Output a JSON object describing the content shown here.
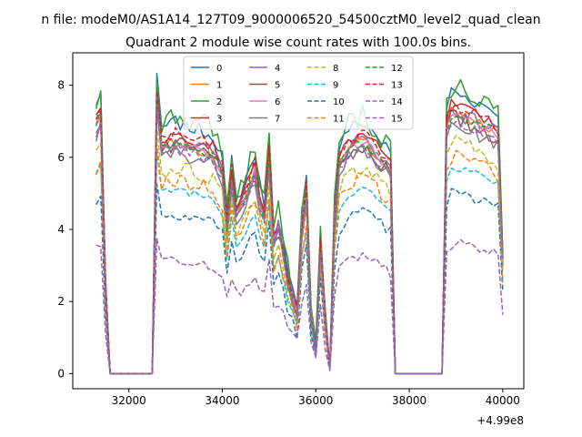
{
  "chart_data": {
    "type": "line",
    "suptitle": "n file: modeM0/AS1A14_127T09_9000006520_54500cztM0_level2_quad_clean",
    "title": "Quadrant 2 module wise count rates with 100.0s bins.",
    "xlabel": "",
    "ylabel": "",
    "x_offset_label": "+4.99e8",
    "xlim": [
      30800,
      40450
    ],
    "ylim": [
      -0.42,
      8.9
    ],
    "xticks": [
      32000,
      34000,
      36000,
      38000,
      40000
    ],
    "xtick_labels": [
      "32000",
      "34000",
      "36000",
      "38000",
      "40000"
    ],
    "yticks": [
      0,
      2,
      4,
      6,
      8
    ],
    "ytick_labels": [
      "0",
      "2",
      "4",
      "6",
      "8"
    ],
    "grid": false,
    "legend_placement": "top-center",
    "legend_columns": 4,
    "series": [
      {
        "name": "0",
        "color": "#1f77b4",
        "dash": "solid",
        "level": 0.96,
        "peak": 8.28,
        "jitter": 0.4
      },
      {
        "name": "1",
        "color": "#ff7f0e",
        "dash": "solid",
        "level": 0.9,
        "peak": 7.6,
        "jitter": 0.3
      },
      {
        "name": "2",
        "color": "#2ca02c",
        "dash": "solid",
        "level": 0.98,
        "peak": 8.48,
        "jitter": 0.42
      },
      {
        "name": "3",
        "color": "#d62728",
        "dash": "solid",
        "level": 0.92,
        "peak": 7.9,
        "jitter": 0.3
      },
      {
        "name": "4",
        "color": "#9467bd",
        "dash": "solid",
        "level": 0.88,
        "peak": 7.7,
        "jitter": 0.3
      },
      {
        "name": "5",
        "color": "#8c564b",
        "dash": "solid",
        "level": 0.86,
        "peak": 7.5,
        "jitter": 0.3
      },
      {
        "name": "6",
        "color": "#e377c2",
        "dash": "solid",
        "level": 0.85,
        "peak": 7.6,
        "jitter": 0.3
      },
      {
        "name": "7",
        "color": "#7f7f7f",
        "dash": "solid",
        "level": 0.82,
        "peak": 7.3,
        "jitter": 0.3
      },
      {
        "name": "8",
        "color": "#bcbd22",
        "dash": "dashed",
        "level": 0.78,
        "peak": 6.8,
        "jitter": 0.28
      },
      {
        "name": "9",
        "color": "#17becf",
        "dash": "dashed",
        "level": 0.7,
        "peak": 6.1,
        "jitter": 0.26
      },
      {
        "name": "10",
        "color": "#1f77b4",
        "dash": "dashed",
        "level": 0.62,
        "peak": 5.3,
        "jitter": 0.25
      },
      {
        "name": "11",
        "color": "#ff7f0e",
        "dash": "dashed",
        "level": 0.74,
        "peak": 6.4,
        "jitter": 0.28
      },
      {
        "name": "12",
        "color": "#2ca02c",
        "dash": "dashed",
        "level": 0.9,
        "peak": 7.6,
        "jitter": 0.3
      },
      {
        "name": "13",
        "color": "#d62728",
        "dash": "dashed",
        "level": 0.93,
        "peak": 7.9,
        "jitter": 0.3
      },
      {
        "name": "14",
        "color": "#9467bd",
        "dash": "dashed",
        "level": 0.42,
        "peak": 3.8,
        "jitter": 0.2
      },
      {
        "name": "15",
        "color": "#9467bd",
        "dash": "dashed",
        "level": 0.86,
        "peak": 7.4,
        "jitter": 0.3
      }
    ],
    "profile_x": [
      31300,
      31400,
      31500,
      31600,
      31700,
      32500,
      32600,
      32700,
      33000,
      33400,
      33800,
      34000,
      34100,
      34200,
      34300,
      34500,
      34700,
      34800,
      34900,
      35000,
      35100,
      35200,
      35300,
      35400,
      35500,
      35600,
      35700,
      35800,
      35900,
      36000,
      36100,
      36200,
      36300,
      36400,
      36500,
      36700,
      37000,
      37300,
      37600,
      37700,
      37800,
      38700,
      38800,
      38900,
      39200,
      39500,
      39800,
      39900,
      40000
    ],
    "profile_y": [
      0.85,
      0.9,
      0.3,
      0,
      0,
      0,
      0.95,
      0.78,
      0.8,
      0.78,
      0.76,
      0.7,
      0.5,
      0.68,
      0.55,
      0.62,
      0.7,
      0.6,
      0.55,
      0.75,
      0.45,
      0.5,
      0.42,
      0.32,
      0.26,
      0.2,
      0.5,
      0.62,
      0.2,
      0.08,
      0.45,
      0.2,
      0.02,
      0.52,
      0.72,
      0.78,
      0.8,
      0.76,
      0.7,
      0.0,
      0.0,
      0.0,
      0.85,
      0.9,
      0.88,
      0.86,
      0.84,
      0.82,
      0.4
    ]
  }
}
